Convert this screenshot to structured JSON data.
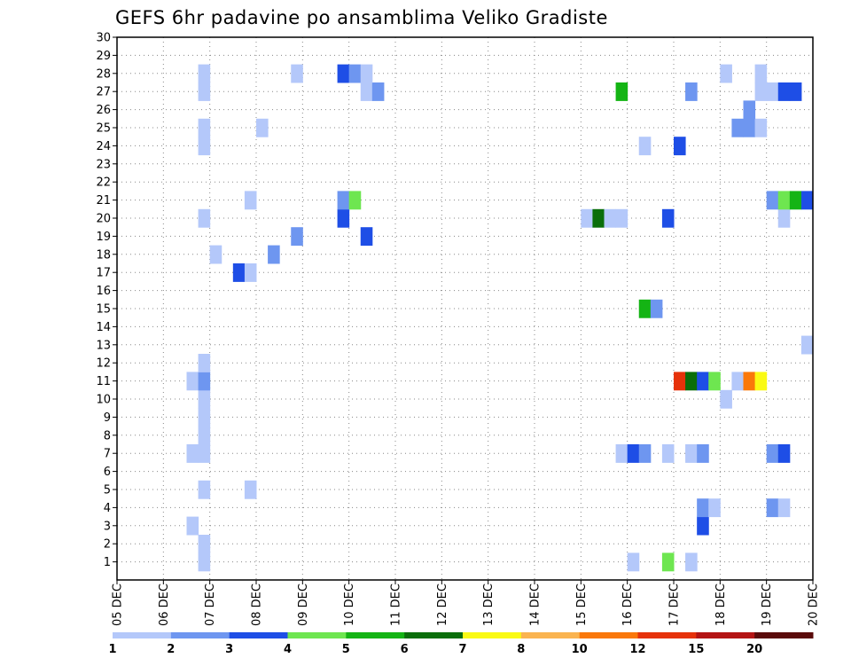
{
  "chart_data": {
    "type": "heatmap",
    "title": "GEFS 6hr padavine po ansamblima Veliko Gradiste",
    "xlabel": "",
    "ylabel": "",
    "x_ticks": [
      "05 DEC",
      "06 DEC",
      "07 DEC",
      "08 DEC",
      "09 DEC",
      "10 DEC",
      "11 DEC",
      "12 DEC",
      "13 DEC",
      "14 DEC",
      "15 DEC",
      "16 DEC",
      "17 DEC",
      "18 DEC",
      "19 DEC",
      "20 DEC"
    ],
    "y_ticks": [
      "1",
      "2",
      "3",
      "4",
      "5",
      "6",
      "7",
      "8",
      "9",
      "10",
      "11",
      "12",
      "13",
      "14",
      "15",
      "16",
      "17",
      "18",
      "19",
      "20",
      "21",
      "22",
      "23",
      "24",
      "25",
      "26",
      "27",
      "28",
      "29",
      "30"
    ],
    "xlim": [
      "2019-12-05 00:00",
      "2019-12-20 00:00"
    ],
    "ylim": [
      0,
      30
    ],
    "grid": true,
    "time_step": "6hr",
    "color_levels": [
      1,
      2,
      3,
      4,
      5,
      6,
      7,
      8,
      10,
      12,
      15,
      20
    ],
    "color_scale": [
      "#b4c8fa",
      "#6e96f0",
      "#1e4ee6",
      "#6ee650",
      "#14b414",
      "#0a6e0a",
      "#fafa14",
      "#fab450",
      "#fa780a",
      "#e6320a",
      "#b41414",
      "#5a0a0a"
    ],
    "cells": [
      {
        "t": "06 DEC 18Z",
        "m": 0,
        "v": 1.5
      },
      {
        "t": "16 DEC 00Z",
        "m": 0,
        "v": 1.5
      },
      {
        "t": "16 DEC 18Z",
        "m": 0,
        "v": 4.5
      },
      {
        "t": "17 DEC 06Z",
        "m": 0,
        "v": 1.5
      },
      {
        "t": "06 DEC 18Z",
        "m": 1,
        "v": 1.5
      },
      {
        "t": "06 DEC 12Z",
        "m": 2,
        "v": 1.5
      },
      {
        "t": "17 DEC 12Z",
        "m": 2,
        "v": 3.5
      },
      {
        "t": "17 DEC 12Z",
        "m": 3,
        "v": 2.5
      },
      {
        "t": "17 DEC 18Z",
        "m": 3,
        "v": 1.5
      },
      {
        "t": "19 DEC 00Z",
        "m": 3,
        "v": 2.5
      },
      {
        "t": "19 DEC 06Z",
        "m": 3,
        "v": 1.5
      },
      {
        "t": "06 DEC 18Z",
        "m": 4,
        "v": 1.5
      },
      {
        "t": "07 DEC 18Z",
        "m": 4,
        "v": 1.5
      },
      {
        "t": "06 DEC 12Z",
        "m": 6,
        "v": 1.5
      },
      {
        "t": "06 DEC 18Z",
        "m": 6,
        "v": 1.5
      },
      {
        "t": "15 DEC 18Z",
        "m": 6,
        "v": 1.5
      },
      {
        "t": "16 DEC 00Z",
        "m": 6,
        "v": 3.5
      },
      {
        "t": "16 DEC 06Z",
        "m": 6,
        "v": 2.5
      },
      {
        "t": "16 DEC 18Z",
        "m": 6,
        "v": 1.5
      },
      {
        "t": "17 DEC 06Z",
        "m": 6,
        "v": 1.5
      },
      {
        "t": "17 DEC 12Z",
        "m": 6,
        "v": 2.5
      },
      {
        "t": "19 DEC 00Z",
        "m": 6,
        "v": 2.5
      },
      {
        "t": "19 DEC 06Z",
        "m": 6,
        "v": 3.5
      },
      {
        "t": "06 DEC 18Z",
        "m": 7,
        "v": 1.5
      },
      {
        "t": "06 DEC 18Z",
        "m": 8,
        "v": 1.5
      },
      {
        "t": "06 DEC 18Z",
        "m": 9,
        "v": 1.5
      },
      {
        "t": "18 DEC 00Z",
        "m": 9,
        "v": 1.5
      },
      {
        "t": "06 DEC 12Z",
        "m": 10,
        "v": 1.5
      },
      {
        "t": "06 DEC 18Z",
        "m": 10,
        "v": 2.5
      },
      {
        "t": "17 DEC 00Z",
        "m": 10,
        "v": 13.5
      },
      {
        "t": "17 DEC 06Z",
        "m": 10,
        "v": 6.5
      },
      {
        "t": "17 DEC 12Z",
        "m": 10,
        "v": 3.5
      },
      {
        "t": "17 DEC 18Z",
        "m": 10,
        "v": 4.5
      },
      {
        "t": "18 DEC 06Z",
        "m": 10,
        "v": 1.5
      },
      {
        "t": "18 DEC 12Z",
        "m": 10,
        "v": 11
      },
      {
        "t": "18 DEC 18Z",
        "m": 10,
        "v": 7.5
      },
      {
        "t": "06 DEC 18Z",
        "m": 11,
        "v": 1.5
      },
      {
        "t": "19 DEC 18Z",
        "m": 12,
        "v": 1.5
      },
      {
        "t": "16 DEC 06Z",
        "m": 14,
        "v": 5.5
      },
      {
        "t": "16 DEC 12Z",
        "m": 14,
        "v": 2.5
      },
      {
        "t": "07 DEC 12Z",
        "m": 16,
        "v": 3.5
      },
      {
        "t": "07 DEC 18Z",
        "m": 16,
        "v": 1.5
      },
      {
        "t": "07 DEC 00Z",
        "m": 17,
        "v": 1.5
      },
      {
        "t": "08 DEC 06Z",
        "m": 17,
        "v": 2.5
      },
      {
        "t": "08 DEC 18Z",
        "m": 18,
        "v": 2.5
      },
      {
        "t": "10 DEC 06Z",
        "m": 18,
        "v": 3.5
      },
      {
        "t": "06 DEC 18Z",
        "m": 19,
        "v": 1.5
      },
      {
        "t": "09 DEC 18Z",
        "m": 19,
        "v": 3.5
      },
      {
        "t": "15 DEC 00Z",
        "m": 19,
        "v": 1.5
      },
      {
        "t": "15 DEC 06Z",
        "m": 19,
        "v": 6.5
      },
      {
        "t": "15 DEC 12Z",
        "m": 19,
        "v": 1.5
      },
      {
        "t": "15 DEC 18Z",
        "m": 19,
        "v": 1.5
      },
      {
        "t": "16 DEC 18Z",
        "m": 19,
        "v": 3.5
      },
      {
        "t": "19 DEC 06Z",
        "m": 19,
        "v": 1.5
      },
      {
        "t": "07 DEC 18Z",
        "m": 20,
        "v": 1.5
      },
      {
        "t": "09 DEC 18Z",
        "m": 20,
        "v": 2.5
      },
      {
        "t": "10 DEC 00Z",
        "m": 20,
        "v": 4.5
      },
      {
        "t": "19 DEC 00Z",
        "m": 20,
        "v": 2.5
      },
      {
        "t": "19 DEC 06Z",
        "m": 20,
        "v": 4.5
      },
      {
        "t": "19 DEC 12Z",
        "m": 20,
        "v": 5.5
      },
      {
        "t": "19 DEC 18Z",
        "m": 20,
        "v": 3.5
      },
      {
        "t": "06 DEC 18Z",
        "m": 23,
        "v": 1.5
      },
      {
        "t": "16 DEC 06Z",
        "m": 23,
        "v": 1.5
      },
      {
        "t": "17 DEC 00Z",
        "m": 23,
        "v": 3.5
      },
      {
        "t": "06 DEC 18Z",
        "m": 24,
        "v": 1.5
      },
      {
        "t": "08 DEC 00Z",
        "m": 24,
        "v": 1.5
      },
      {
        "t": "18 DEC 06Z",
        "m": 24,
        "v": 2.5
      },
      {
        "t": "18 DEC 12Z",
        "m": 24,
        "v": 2.5
      },
      {
        "t": "18 DEC 18Z",
        "m": 24,
        "v": 1.5
      },
      {
        "t": "18 DEC 12Z",
        "m": 25,
        "v": 2.5
      },
      {
        "t": "06 DEC 18Z",
        "m": 26,
        "v": 1.5
      },
      {
        "t": "10 DEC 06Z",
        "m": 26,
        "v": 1.5
      },
      {
        "t": "10 DEC 12Z",
        "m": 26,
        "v": 2.5
      },
      {
        "t": "15 DEC 18Z",
        "m": 26,
        "v": 5.5
      },
      {
        "t": "17 DEC 06Z",
        "m": 26,
        "v": 2.5
      },
      {
        "t": "18 DEC 18Z",
        "m": 26,
        "v": 1.5
      },
      {
        "t": "19 DEC 00Z",
        "m": 26,
        "v": 1.5
      },
      {
        "t": "19 DEC 06Z",
        "m": 26,
        "v": 3.5
      },
      {
        "t": "19 DEC 12Z",
        "m": 26,
        "v": 3.5
      },
      {
        "t": "06 DEC 18Z",
        "m": 27,
        "v": 1.5
      },
      {
        "t": "08 DEC 18Z",
        "m": 27,
        "v": 1.5
      },
      {
        "t": "09 DEC 18Z",
        "m": 27,
        "v": 3.5
      },
      {
        "t": "10 DEC 00Z",
        "m": 27,
        "v": 2.5
      },
      {
        "t": "10 DEC 06Z",
        "m": 27,
        "v": 1.5
      },
      {
        "t": "18 DEC 00Z",
        "m": 27,
        "v": 1.5
      },
      {
        "t": "18 DEC 18Z",
        "m": 27,
        "v": 1.5
      }
    ]
  }
}
